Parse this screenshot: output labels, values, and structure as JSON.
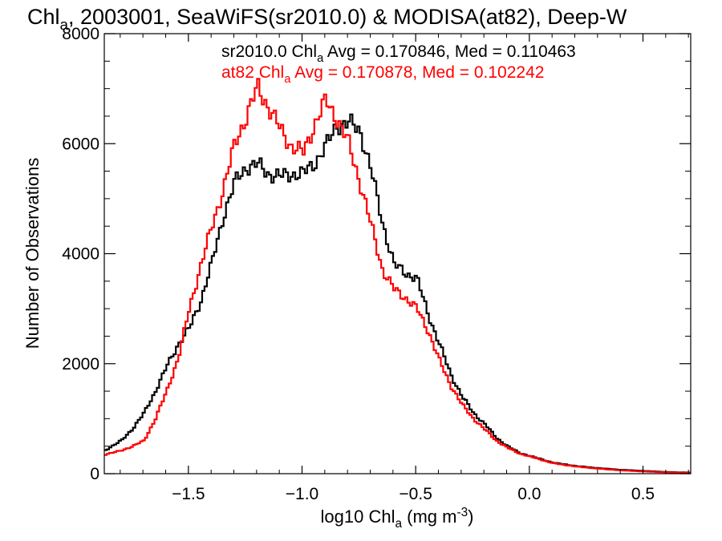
{
  "chart_data": {
    "type": "line",
    "title": {
      "main": "Chl",
      "sub": "a",
      "rest": ", 2003001, SeaWiFS(sr2010.0) & MODISA(at82), Deep-W"
    },
    "xlabel": {
      "pre": "log10 Chl",
      "sub": "a",
      "mid": " (mg m",
      "sup": "-3",
      "post": ")"
    },
    "ylabel": "Number of Observations",
    "xlim": [
      -1.87,
      0.71
    ],
    "ylim": [
      0,
      8000
    ],
    "xticks": [
      -1.5,
      -1.0,
      -0.5,
      0.0,
      0.5
    ],
    "xtick_labels": [
      "−1.5",
      "−1.0",
      "−0.5",
      "0.0",
      "0.5"
    ],
    "yticks": [
      0,
      2000,
      4000,
      6000,
      8000
    ],
    "ytick_labels": [
      "0",
      "2000",
      "4000",
      "6000",
      "8000"
    ],
    "annotations": [
      {
        "pre": "sr2010.0 Chl",
        "sub": "a",
        "post": " Avg = 0.170846, Med = 0.110463",
        "color": "#000000"
      },
      {
        "pre": "at82 Chl",
        "sub": "a",
        "post": " Avg = 0.170878, Med = 0.102242",
        "color": "#ff0000"
      }
    ],
    "grid": false,
    "series": [
      {
        "color": "#000000",
        "x": [
          -1.87,
          -1.8,
          -1.75,
          -1.7,
          -1.65,
          -1.6,
          -1.55,
          -1.5,
          -1.45,
          -1.4,
          -1.35,
          -1.3,
          -1.25,
          -1.2,
          -1.15,
          -1.1,
          -1.05,
          -1.0,
          -0.95,
          -0.9,
          -0.85,
          -0.8,
          -0.75,
          -0.7,
          -0.65,
          -0.6,
          -0.55,
          -0.5,
          -0.45,
          -0.4,
          -0.35,
          -0.3,
          -0.25,
          -0.2,
          -0.15,
          -0.1,
          -0.05,
          0.0,
          0.05,
          0.1,
          0.2,
          0.3,
          0.4,
          0.5,
          0.6,
          0.71
        ],
        "y": [
          430,
          600,
          820,
          1100,
          1500,
          1950,
          2350,
          2650,
          3150,
          3850,
          4700,
          5300,
          5580,
          5620,
          5450,
          5400,
          5450,
          5450,
          5650,
          5950,
          6350,
          6370,
          6250,
          5500,
          4550,
          3800,
          3650,
          3550,
          2900,
          2350,
          1800,
          1400,
          1100,
          900,
          650,
          500,
          380,
          320,
          260,
          200,
          140,
          100,
          70,
          50,
          30,
          20
        ]
      },
      {
        "color": "#ff0000",
        "x": [
          -1.87,
          -1.8,
          -1.75,
          -1.7,
          -1.65,
          -1.6,
          -1.55,
          -1.5,
          -1.45,
          -1.4,
          -1.35,
          -1.3,
          -1.25,
          -1.2,
          -1.15,
          -1.1,
          -1.05,
          -1.0,
          -0.95,
          -0.9,
          -0.85,
          -0.8,
          -0.75,
          -0.7,
          -0.65,
          -0.6,
          -0.55,
          -0.5,
          -0.45,
          -0.4,
          -0.35,
          -0.3,
          -0.25,
          -0.2,
          -0.15,
          -0.1,
          -0.05,
          0.0,
          0.05,
          0.1,
          0.2,
          0.3,
          0.4,
          0.5,
          0.6,
          0.71
        ],
        "y": [
          350,
          420,
          500,
          600,
          1000,
          1500,
          2100,
          3000,
          3800,
          4500,
          5200,
          6000,
          6500,
          7020,
          6650,
          6250,
          5950,
          5830,
          6350,
          6780,
          6450,
          6000,
          5300,
          4500,
          3700,
          3350,
          3200,
          3000,
          2600,
          2050,
          1600,
          1250,
          1000,
          800,
          600,
          470,
          370,
          310,
          250,
          190,
          130,
          90,
          60,
          40,
          25,
          15
        ]
      }
    ]
  }
}
